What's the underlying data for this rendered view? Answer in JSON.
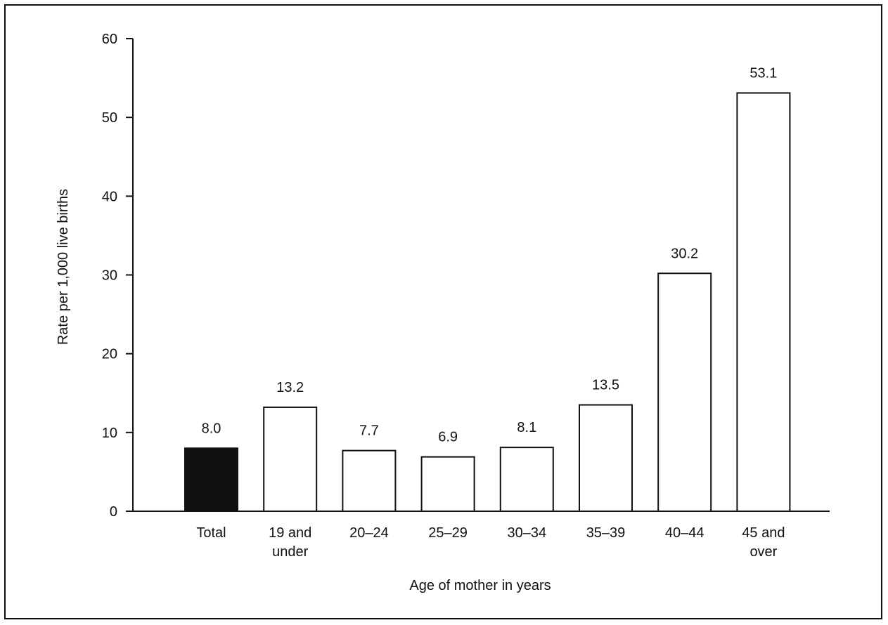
{
  "chart_data": {
    "type": "bar",
    "title": "",
    "xlabel": "Age of mother in years",
    "ylabel": "Rate per 1,000 live births",
    "ylim": [
      0,
      60
    ],
    "yticks": [
      0,
      10,
      20,
      30,
      40,
      50,
      60
    ],
    "yticks_labels": [
      "0",
      "10",
      "20",
      "30",
      "40",
      "50",
      "60"
    ],
    "grid": false,
    "categories": [
      {
        "line1": "Total",
        "line2": ""
      },
      {
        "line1": "19 and",
        "line2": "under"
      },
      {
        "line1": "20–24",
        "line2": ""
      },
      {
        "line1": "25–29",
        "line2": ""
      },
      {
        "line1": "30–34",
        "line2": ""
      },
      {
        "line1": "35–39",
        "line2": ""
      },
      {
        "line1": "40–44",
        "line2": ""
      },
      {
        "line1": "45 and",
        "line2": "over"
      }
    ],
    "values": [
      8.0,
      13.2,
      7.7,
      6.9,
      8.1,
      13.5,
      30.2,
      53.1
    ],
    "value_labels": [
      "8.0",
      "13.2",
      "7.7",
      "6.9",
      "8.1",
      "13.5",
      "30.2",
      "53.1"
    ],
    "colors": {
      "highlight_fill": "#111111",
      "bar_fill": "#ffffff",
      "bar_stroke": "#111111"
    },
    "highlight_index": 0
  }
}
